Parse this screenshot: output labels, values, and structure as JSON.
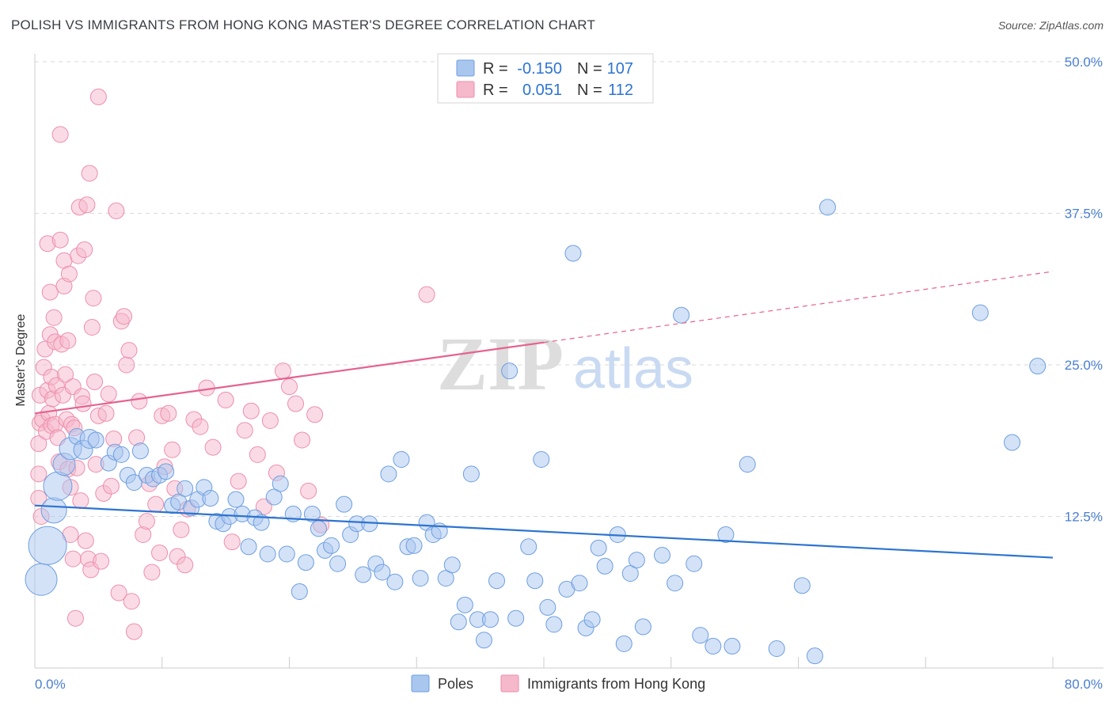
{
  "title": "POLISH VS IMMIGRANTS FROM HONG KONG MASTER'S DEGREE CORRELATION CHART",
  "source": "Source: ZipAtlas.com",
  "watermark": {
    "zip": "ZIP",
    "atlas": "atlas"
  },
  "colors": {
    "blue_fill": "#a9c6ef",
    "blue_stroke": "#6d9ee0",
    "blue_line": "#2d74d0",
    "pink_fill": "#f6b8cb",
    "pink_stroke": "#ee8eab",
    "pink_line": "#e5628e",
    "tick_text": "#4a7fd0",
    "grid": "#d9d9d9"
  },
  "legend_top": [
    {
      "r_label": "R =",
      "r_value": "-0.150",
      "n_label": "N =",
      "n_value": "107",
      "color": "blue"
    },
    {
      "r_label": "R =",
      "r_value": "0.051",
      "n_label": "N =",
      "n_value": "112",
      "color": "pink"
    }
  ],
  "legend_bottom": [
    {
      "label": "Poles",
      "color": "blue"
    },
    {
      "label": "Immigrants from Hong Kong",
      "color": "pink"
    }
  ],
  "chart_data": {
    "type": "scatter",
    "title": "POLISH VS IMMIGRANTS FROM HONG KONG MASTER'S DEGREE CORRELATION CHART",
    "xlabel": "",
    "ylabel": "Master's Degree",
    "xlim": [
      0,
      80
    ],
    "ylim": [
      0,
      50
    ],
    "x_ticks": [
      {
        "value": 0,
        "label": "0.0%"
      },
      {
        "value": 80,
        "label": "80.0%"
      }
    ],
    "y_ticks": [
      {
        "value": 12.5,
        "label": "12.5%"
      },
      {
        "value": 25,
        "label": "25.0%"
      },
      {
        "value": 37.5,
        "label": "37.5%"
      },
      {
        "value": 50,
        "label": "50.0%"
      }
    ],
    "grid": true,
    "legend_position": "top-center",
    "series": [
      {
        "name": "Poles",
        "color": "blue",
        "trend": {
          "x0": 0,
          "y0": 13.4,
          "x1": 80,
          "y1": 9.1,
          "dashed_from": null
        },
        "points": [
          [
            0.5,
            7.3,
            2.0
          ],
          [
            1.0,
            10.1,
            2.4
          ],
          [
            1.5,
            13.0,
            1.6
          ],
          [
            1.8,
            15.0,
            1.8
          ],
          [
            2.3,
            16.8,
            1.4
          ],
          [
            2.8,
            18.1,
            1.4
          ],
          [
            3.3,
            19.1,
            1.0
          ],
          [
            3.8,
            18.0,
            1.2
          ],
          [
            4.3,
            18.9,
            1.2
          ],
          [
            4.8,
            18.8,
            1.0
          ],
          [
            5.8,
            16.9,
            1.0
          ],
          [
            6.3,
            17.8,
            1.0
          ],
          [
            6.8,
            17.6,
            1.0
          ],
          [
            7.3,
            15.9,
            1.0
          ],
          [
            7.8,
            15.3,
            1.0
          ],
          [
            8.3,
            17.9,
            1.0
          ],
          [
            8.8,
            15.9,
            1.0
          ],
          [
            9.3,
            15.6,
            1.0
          ],
          [
            9.8,
            15.9,
            1.0
          ],
          [
            10.3,
            16.2,
            1.0
          ],
          [
            10.8,
            13.4,
            1.0
          ],
          [
            11.3,
            13.7,
            1.0
          ],
          [
            11.8,
            14.8,
            1.0
          ],
          [
            12.3,
            13.2,
            1.0
          ],
          [
            12.8,
            13.9,
            1.0
          ],
          [
            13.3,
            14.9,
            1.0
          ],
          [
            13.8,
            14.0,
            1.0
          ],
          [
            14.3,
            12.1,
            1.0
          ],
          [
            14.8,
            11.9,
            1.0
          ],
          [
            15.3,
            12.5,
            1.0
          ],
          [
            15.8,
            13.9,
            1.0
          ],
          [
            16.3,
            12.7,
            1.0
          ],
          [
            16.8,
            10.0,
            1.0
          ],
          [
            17.3,
            12.4,
            1.0
          ],
          [
            17.8,
            12.0,
            1.0
          ],
          [
            18.3,
            9.4,
            1.0
          ],
          [
            18.8,
            14.1,
            1.0
          ],
          [
            19.3,
            15.2,
            1.0
          ],
          [
            19.8,
            9.4,
            1.0
          ],
          [
            20.3,
            12.7,
            1.0
          ],
          [
            20.8,
            6.3,
            1.0
          ],
          [
            21.3,
            8.7,
            1.0
          ],
          [
            21.8,
            12.7,
            1.0
          ],
          [
            22.3,
            11.5,
            1.0
          ],
          [
            22.8,
            9.7,
            1.0
          ],
          [
            23.3,
            10.1,
            1.0
          ],
          [
            23.8,
            8.6,
            1.0
          ],
          [
            24.3,
            13.5,
            1.0
          ],
          [
            24.8,
            11.0,
            1.0
          ],
          [
            25.3,
            11.9,
            1.0
          ],
          [
            25.8,
            7.7,
            1.0
          ],
          [
            26.3,
            11.9,
            1.0
          ],
          [
            26.8,
            8.6,
            1.0
          ],
          [
            27.3,
            7.9,
            1.0
          ],
          [
            27.8,
            16.0,
            1.0
          ],
          [
            28.3,
            7.1,
            1.0
          ],
          [
            28.8,
            17.2,
            1.0
          ],
          [
            29.3,
            10.0,
            1.0
          ],
          [
            29.8,
            10.1,
            1.0
          ],
          [
            30.3,
            7.4,
            1.0
          ],
          [
            30.8,
            12.0,
            1.0
          ],
          [
            31.3,
            11.0,
            1.0
          ],
          [
            31.8,
            11.3,
            1.0
          ],
          [
            32.3,
            7.4,
            1.0
          ],
          [
            32.8,
            8.5,
            1.0
          ],
          [
            33.3,
            3.8,
            1.0
          ],
          [
            33.8,
            5.2,
            1.0
          ],
          [
            34.3,
            16.0,
            1.0
          ],
          [
            34.8,
            4.0,
            1.0
          ],
          [
            35.3,
            2.3,
            1.0
          ],
          [
            35.8,
            4.0,
            1.0
          ],
          [
            36.3,
            7.2,
            1.0
          ],
          [
            37.3,
            24.5,
            1.0
          ],
          [
            37.8,
            4.1,
            1.0
          ],
          [
            38.8,
            10.0,
            1.0
          ],
          [
            39.3,
            7.2,
            1.0
          ],
          [
            39.8,
            17.2,
            1.0
          ],
          [
            40.3,
            5.0,
            1.0
          ],
          [
            40.8,
            3.6,
            1.0
          ],
          [
            41.8,
            6.5,
            1.0
          ],
          [
            42.3,
            34.2,
            1.0
          ],
          [
            42.8,
            7.0,
            1.0
          ],
          [
            43.3,
            3.3,
            1.0
          ],
          [
            43.8,
            4.0,
            1.0
          ],
          [
            44.3,
            9.9,
            1.0
          ],
          [
            44.8,
            8.4,
            1.0
          ],
          [
            45.8,
            11.0,
            1.0
          ],
          [
            46.3,
            2.0,
            1.0
          ],
          [
            46.8,
            7.8,
            1.0
          ],
          [
            47.3,
            8.9,
            1.0
          ],
          [
            47.8,
            3.4,
            1.0
          ],
          [
            49.3,
            9.3,
            1.0
          ],
          [
            50.3,
            7.0,
            1.0
          ],
          [
            50.8,
            29.1,
            1.0
          ],
          [
            51.8,
            8.6,
            1.0
          ],
          [
            52.3,
            2.7,
            1.0
          ],
          [
            53.3,
            1.8,
            1.0
          ],
          [
            54.3,
            11.0,
            1.0
          ],
          [
            54.8,
            1.8,
            1.0
          ],
          [
            56.0,
            16.8,
            1.0
          ],
          [
            58.3,
            1.6,
            1.0
          ],
          [
            60.3,
            6.8,
            1.0
          ],
          [
            61.3,
            1.0,
            1.0
          ],
          [
            62.3,
            38.0,
            1.0
          ],
          [
            74.3,
            29.3,
            1.0
          ],
          [
            76.8,
            18.6,
            1.0
          ],
          [
            78.8,
            24.9,
            1.0
          ]
        ]
      },
      {
        "name": "Immigrants from Hong Kong",
        "color": "pink",
        "trend": {
          "x0": 0,
          "y0": 21.0,
          "x1": 80,
          "y1": 32.7,
          "dashed_from": 40
        },
        "points": [
          [
            0.3,
            18.5,
            1.0
          ],
          [
            0.3,
            16.0,
            1.0
          ],
          [
            0.3,
            14.0,
            1.0
          ],
          [
            0.4,
            20.2,
            1.0
          ],
          [
            0.4,
            22.5,
            1.0
          ],
          [
            0.5,
            12.5,
            1.0
          ],
          [
            0.6,
            20.5,
            1.0
          ],
          [
            0.7,
            24.8,
            1.0
          ],
          [
            0.8,
            26.3,
            1.0
          ],
          [
            0.9,
            19.5,
            1.0
          ],
          [
            1.0,
            35.0,
            1.0
          ],
          [
            1.0,
            22.9,
            1.0
          ],
          [
            1.1,
            21.0,
            1.0
          ],
          [
            1.2,
            27.5,
            1.0
          ],
          [
            1.2,
            31.0,
            1.0
          ],
          [
            1.3,
            20.0,
            1.0
          ],
          [
            1.3,
            24.0,
            1.0
          ],
          [
            1.4,
            22.2,
            1.0
          ],
          [
            1.5,
            28.9,
            1.0
          ],
          [
            1.6,
            26.9,
            1.0
          ],
          [
            1.6,
            20.1,
            1.0
          ],
          [
            1.7,
            23.3,
            1.0
          ],
          [
            1.8,
            19.0,
            1.0
          ],
          [
            1.9,
            17.0,
            1.0
          ],
          [
            2.0,
            44.0,
            1.0
          ],
          [
            2.0,
            35.3,
            1.0
          ],
          [
            2.1,
            26.7,
            1.0
          ],
          [
            2.2,
            22.5,
            1.0
          ],
          [
            2.3,
            33.6,
            1.0
          ],
          [
            2.3,
            31.5,
            1.0
          ],
          [
            2.4,
            24.2,
            1.0
          ],
          [
            2.5,
            20.5,
            1.0
          ],
          [
            2.6,
            16.4,
            1.0
          ],
          [
            2.6,
            27.0,
            1.0
          ],
          [
            2.7,
            32.5,
            1.0
          ],
          [
            2.8,
            14.9,
            1.0
          ],
          [
            2.8,
            11.0,
            1.0
          ],
          [
            2.9,
            20.1,
            1.0
          ],
          [
            3.0,
            23.2,
            1.0
          ],
          [
            3.0,
            9.0,
            1.0
          ],
          [
            3.1,
            19.8,
            1.0
          ],
          [
            3.2,
            4.1,
            1.0
          ],
          [
            3.3,
            16.5,
            1.0
          ],
          [
            3.4,
            34.0,
            1.0
          ],
          [
            3.5,
            38.0,
            1.0
          ],
          [
            3.6,
            13.8,
            1.0
          ],
          [
            3.7,
            22.4,
            1.0
          ],
          [
            3.8,
            21.8,
            1.0
          ],
          [
            3.9,
            34.5,
            1.0
          ],
          [
            4.0,
            10.5,
            1.0
          ],
          [
            4.1,
            38.2,
            1.0
          ],
          [
            4.2,
            9.0,
            1.0
          ],
          [
            4.3,
            40.8,
            1.0
          ],
          [
            4.4,
            8.1,
            1.0
          ],
          [
            4.5,
            28.1,
            1.0
          ],
          [
            4.6,
            30.5,
            1.0
          ],
          [
            4.7,
            23.6,
            1.0
          ],
          [
            4.8,
            16.8,
            1.0
          ],
          [
            5.0,
            47.1,
            1.0
          ],
          [
            5.0,
            20.8,
            1.0
          ],
          [
            5.2,
            8.8,
            1.0
          ],
          [
            5.4,
            14.4,
            1.0
          ],
          [
            5.6,
            21.0,
            1.0
          ],
          [
            5.8,
            22.6,
            1.0
          ],
          [
            6.0,
            15.0,
            1.0
          ],
          [
            6.2,
            18.9,
            1.0
          ],
          [
            6.4,
            37.7,
            1.0
          ],
          [
            6.6,
            6.2,
            1.0
          ],
          [
            6.8,
            28.6,
            1.0
          ],
          [
            7.0,
            29.0,
            1.0
          ],
          [
            7.2,
            25.0,
            1.0
          ],
          [
            7.4,
            26.2,
            1.0
          ],
          [
            7.6,
            5.5,
            1.0
          ],
          [
            7.8,
            3.0,
            1.0
          ],
          [
            8.0,
            19.0,
            1.0
          ],
          [
            8.2,
            22.0,
            1.0
          ],
          [
            8.5,
            11.0,
            1.0
          ],
          [
            8.8,
            12.1,
            1.0
          ],
          [
            9.0,
            15.2,
            1.0
          ],
          [
            9.2,
            7.9,
            1.0
          ],
          [
            9.5,
            13.5,
            1.0
          ],
          [
            9.8,
            9.5,
            1.0
          ],
          [
            10.0,
            20.8,
            1.0
          ],
          [
            10.2,
            16.6,
            1.0
          ],
          [
            10.5,
            21.0,
            1.0
          ],
          [
            10.8,
            18.0,
            1.0
          ],
          [
            11.0,
            14.8,
            1.0
          ],
          [
            11.2,
            9.2,
            1.0
          ],
          [
            11.5,
            11.4,
            1.0
          ],
          [
            11.8,
            8.5,
            1.0
          ],
          [
            12.0,
            13.1,
            1.0
          ],
          [
            12.5,
            20.5,
            1.0
          ],
          [
            13.0,
            19.9,
            1.0
          ],
          [
            13.5,
            23.1,
            1.0
          ],
          [
            14.0,
            18.2,
            1.0
          ],
          [
            15.0,
            22.1,
            1.0
          ],
          [
            15.5,
            10.4,
            1.0
          ],
          [
            16.0,
            15.4,
            1.0
          ],
          [
            16.5,
            19.6,
            1.0
          ],
          [
            17.0,
            21.2,
            1.0
          ],
          [
            17.5,
            17.6,
            1.0
          ],
          [
            18.0,
            13.3,
            1.0
          ],
          [
            18.5,
            20.4,
            1.0
          ],
          [
            19.0,
            16.1,
            1.0
          ],
          [
            19.5,
            24.5,
            1.0
          ],
          [
            20.0,
            23.2,
            1.0
          ],
          [
            20.5,
            21.8,
            1.0
          ],
          [
            21.0,
            18.8,
            1.0
          ],
          [
            21.5,
            14.6,
            1.0
          ],
          [
            22.0,
            20.9,
            1.0
          ],
          [
            22.5,
            11.8,
            1.0
          ],
          [
            30.8,
            30.8,
            1.0
          ]
        ]
      }
    ]
  }
}
